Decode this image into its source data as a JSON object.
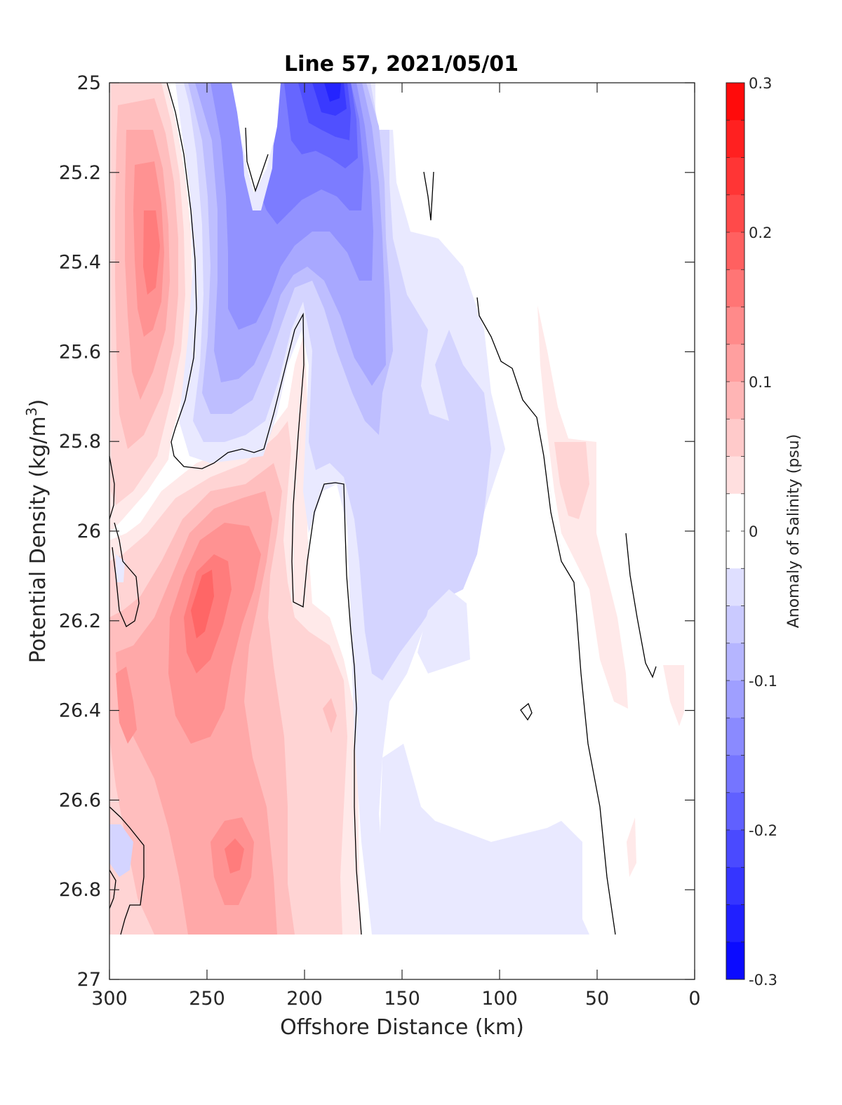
{
  "chart_data": {
    "type": "heatmap",
    "subtype": "filled-contour",
    "title": "Line 57, 2021/05/01",
    "xlabel": "Offshore Distance (km)",
    "ylabel_main": "Potential Density (kg/m",
    "ylabel_sup": "3",
    "ylabel_close": ")",
    "xlim": [
      300,
      0
    ],
    "x_reversed": true,
    "ylim": [
      27,
      25
    ],
    "y_reversed": true,
    "xticks": [
      300,
      250,
      200,
      150,
      100,
      50,
      0
    ],
    "xtick_labels": [
      "300",
      "250",
      "200",
      "150",
      "100",
      "50",
      "0"
    ],
    "yticks": [
      25,
      25.2,
      25.4,
      25.6,
      25.8,
      26,
      26.2,
      26.4,
      26.6,
      26.8,
      27
    ],
    "ytick_labels": [
      "25",
      "25.2",
      "25.4",
      "25.6",
      "25.8",
      "26",
      "26.2",
      "26.4",
      "26.6",
      "26.8",
      "27"
    ],
    "colorbar": {
      "label": "Anomaly of Salinity (psu)",
      "range": [
        -0.3,
        0.3
      ],
      "levels": 24,
      "ticks": [
        0.3,
        0.2,
        0.1,
        0,
        -0.1,
        -0.2,
        -0.3
      ],
      "tick_labels": [
        "0.3",
        "0.2",
        "0.1",
        "0",
        "-0.1",
        "-0.2",
        "-0.3"
      ],
      "colormap": "blue-white-red",
      "negative_color": "#0000ff",
      "positive_color": "#ff0000"
    },
    "zero_contour_color": "#000000",
    "grid": false,
    "data_coverage": {
      "x": [
        300,
        5
      ],
      "y": [
        25,
        26.9
      ]
    },
    "features": [
      {
        "sign": "positive",
        "x": 277,
        "y": 25.38,
        "peak": 0.2
      },
      {
        "sign": "positive",
        "x": 252,
        "y": 26.15,
        "peak": 0.2
      },
      {
        "sign": "positive",
        "x": 235,
        "y": 26.72,
        "peak": 0.13
      },
      {
        "sign": "positive",
        "x": 290,
        "y": 26.4,
        "peak": 0.13
      },
      {
        "sign": "positive",
        "x": 60,
        "y": 25.9,
        "peak": 0.06
      },
      {
        "sign": "negative",
        "x": 183,
        "y": 25.05,
        "peak": -0.25
      },
      {
        "sign": "negative",
        "x": 230,
        "y": 25.5,
        "peak": -0.1
      },
      {
        "sign": "negative",
        "x": 160,
        "y": 25.7,
        "peak": -0.1
      },
      {
        "sign": "negative",
        "x": 150,
        "y": 26.1,
        "peak": -0.06
      },
      {
        "sign": "negative",
        "x": 100,
        "y": 26.75,
        "peak": -0.04
      }
    ]
  }
}
